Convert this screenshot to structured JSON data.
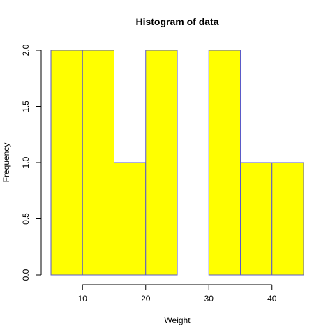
{
  "chart_data": {
    "type": "bar",
    "title": "Histogram of data",
    "xlabel": "Weight",
    "ylabel": "Frequency",
    "bins": [
      {
        "start": 5,
        "end": 10,
        "count": 2
      },
      {
        "start": 10,
        "end": 15,
        "count": 2
      },
      {
        "start": 15,
        "end": 20,
        "count": 1
      },
      {
        "start": 20,
        "end": 25,
        "count": 2
      },
      {
        "start": 25,
        "end": 30,
        "count": 0
      },
      {
        "start": 30,
        "end": 35,
        "count": 2
      },
      {
        "start": 35,
        "end": 40,
        "count": 1
      },
      {
        "start": 40,
        "end": 45,
        "count": 1
      }
    ],
    "xlim": [
      5,
      45
    ],
    "ylim": [
      0,
      2
    ],
    "x_ticks": [
      10,
      20,
      30,
      40
    ],
    "x_tick_labels": [
      "10",
      "20",
      "30",
      "40"
    ],
    "y_ticks": [
      0,
      0.5,
      1,
      1.5,
      2
    ],
    "y_tick_labels": [
      "0.0",
      "0.5",
      "1.0",
      "1.5",
      "2.0"
    ],
    "grid": false,
    "colors": {
      "bar_fill": "#ffff00",
      "bar_border": "#5a5ac8",
      "axis": "#000000"
    }
  }
}
